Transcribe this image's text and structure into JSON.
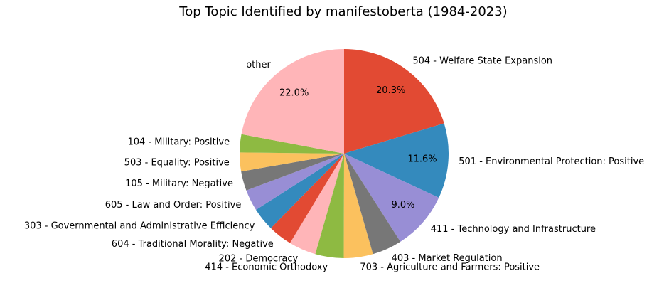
{
  "chart_data": {
    "type": "pie",
    "title": "Top Topic Identified by manifestoberta (1984-2023)",
    "start_angle_deg": 90,
    "direction": "clockwise",
    "slices": [
      {
        "label": "504 - Welfare State Expansion",
        "value": 20.3,
        "pct_label": "20.3%",
        "color": "#E24A33"
      },
      {
        "label": "501 - Environmental Protection: Positive",
        "value": 11.6,
        "pct_label": "11.6%",
        "color": "#348ABD"
      },
      {
        "label": "411 - Technology and Infrastructure",
        "value": 9.0,
        "pct_label": "9.0%",
        "color": "#988ED5"
      },
      {
        "label": "403 - Market Regulation",
        "value": 4.6,
        "pct_label": "",
        "color": "#777777"
      },
      {
        "label": "703 - Agriculture and Farmers: Positive",
        "value": 4.5,
        "pct_label": "",
        "color": "#FBC15E"
      },
      {
        "label": "414 - Economic Orthodoxy",
        "value": 4.4,
        "pct_label": "",
        "color": "#8EBA42"
      },
      {
        "label": "202 - Democracy",
        "value": 4.2,
        "pct_label": "",
        "color": "#FFB5B8"
      },
      {
        "label": "604 - Traditional Morality: Negative",
        "value": 3.7,
        "pct_label": "",
        "color": "#E24A33"
      },
      {
        "label": "303 - Governmental and Administrative Efficiency",
        "value": 3.6,
        "pct_label": "",
        "color": "#348ABD"
      },
      {
        "label": "605 - Law and Order: Positive",
        "value": 3.3,
        "pct_label": "",
        "color": "#988ED5"
      },
      {
        "label": "105 - Military: Negative",
        "value": 3.0,
        "pct_label": "",
        "color": "#777777"
      },
      {
        "label": "503 - Equality: Positive",
        "value": 2.9,
        "pct_label": "",
        "color": "#FBC15E"
      },
      {
        "label": "104 - Military: Positive",
        "value": 2.8,
        "pct_label": "",
        "color": "#8EBA42"
      },
      {
        "label": "other",
        "value": 22.0,
        "pct_label": "22.0%",
        "color": "#FFB5B8"
      }
    ]
  }
}
